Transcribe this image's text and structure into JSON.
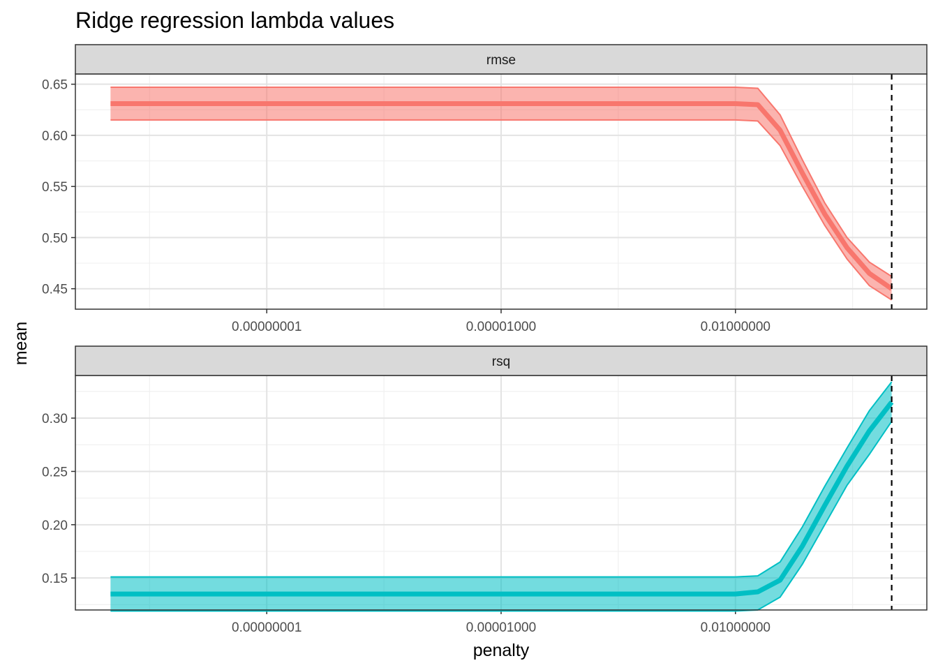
{
  "chart_data": {
    "type": "line",
    "title": "Ridge regression lambda values",
    "xlabel": "penalty",
    "ylabel": "mean",
    "x_scale": "log10",
    "x_ticks": [
      1e-08,
      1e-05,
      0.01
    ],
    "x_tick_labels": [
      "0.00000001",
      "0.00001000",
      "0.01000000"
    ],
    "selected_penalty": 1.0,
    "grid": true,
    "legend": "none",
    "penalty": [
      1e-10,
      1.931e-10,
      3.728e-10,
      7.197e-10,
      1.389e-09,
      2.683e-09,
      5.179e-09,
      1e-08,
      1.931e-08,
      3.728e-08,
      7.197e-08,
      1.389e-07,
      2.683e-07,
      5.179e-07,
      1e-06,
      1.931e-06,
      3.728e-06,
      7.197e-06,
      1.389e-05,
      2.683e-05,
      5.179e-05,
      0.0001,
      0.0001931,
      0.0003728,
      0.0007197,
      0.001389,
      0.002683,
      0.005179,
      0.01,
      0.01931,
      0.03728,
      0.07197,
      0.1389,
      0.2683,
      0.5179,
      1.0
    ],
    "panels": [
      {
        "metric": "rmse",
        "color": "#F8766D",
        "ylim": [
          0.43,
          0.66
        ],
        "y_ticks": [
          0.45,
          0.5,
          0.55,
          0.6,
          0.65
        ],
        "y_tick_labels": [
          "0.45",
          "0.50",
          "0.55",
          "0.60",
          "0.65"
        ],
        "mean": [
          0.631,
          0.631,
          0.631,
          0.631,
          0.631,
          0.631,
          0.631,
          0.631,
          0.631,
          0.631,
          0.631,
          0.631,
          0.631,
          0.631,
          0.631,
          0.631,
          0.631,
          0.631,
          0.631,
          0.631,
          0.631,
          0.631,
          0.631,
          0.631,
          0.631,
          0.631,
          0.631,
          0.631,
          0.631,
          0.63,
          0.605,
          0.563,
          0.523,
          0.49,
          0.465,
          0.45
        ],
        "lower": [
          0.615,
          0.615,
          0.615,
          0.615,
          0.615,
          0.615,
          0.615,
          0.615,
          0.615,
          0.615,
          0.615,
          0.615,
          0.615,
          0.615,
          0.615,
          0.615,
          0.615,
          0.615,
          0.615,
          0.615,
          0.615,
          0.615,
          0.615,
          0.615,
          0.615,
          0.615,
          0.615,
          0.615,
          0.615,
          0.614,
          0.59,
          0.55,
          0.512,
          0.479,
          0.453,
          0.439
        ],
        "upper": [
          0.647,
          0.647,
          0.647,
          0.647,
          0.647,
          0.647,
          0.647,
          0.647,
          0.647,
          0.647,
          0.647,
          0.647,
          0.647,
          0.647,
          0.647,
          0.647,
          0.647,
          0.647,
          0.647,
          0.647,
          0.647,
          0.647,
          0.647,
          0.647,
          0.647,
          0.647,
          0.647,
          0.647,
          0.647,
          0.646,
          0.62,
          0.576,
          0.534,
          0.5,
          0.476,
          0.462
        ]
      },
      {
        "metric": "rsq",
        "color": "#00BFC4",
        "ylim": [
          0.12,
          0.34
        ],
        "y_ticks": [
          0.15,
          0.2,
          0.25,
          0.3
        ],
        "y_tick_labels": [
          "0.15",
          "0.20",
          "0.25",
          "0.30"
        ],
        "mean": [
          0.135,
          0.135,
          0.135,
          0.135,
          0.135,
          0.135,
          0.135,
          0.135,
          0.135,
          0.135,
          0.135,
          0.135,
          0.135,
          0.135,
          0.135,
          0.135,
          0.135,
          0.135,
          0.135,
          0.135,
          0.135,
          0.135,
          0.135,
          0.135,
          0.135,
          0.135,
          0.135,
          0.135,
          0.135,
          0.137,
          0.148,
          0.18,
          0.218,
          0.255,
          0.288,
          0.315
        ],
        "lower": [
          0.119,
          0.119,
          0.119,
          0.119,
          0.119,
          0.119,
          0.119,
          0.119,
          0.119,
          0.119,
          0.119,
          0.119,
          0.119,
          0.119,
          0.119,
          0.119,
          0.119,
          0.119,
          0.119,
          0.119,
          0.119,
          0.119,
          0.119,
          0.119,
          0.119,
          0.119,
          0.119,
          0.119,
          0.119,
          0.12,
          0.132,
          0.163,
          0.2,
          0.237,
          0.266,
          0.297
        ],
        "upper": [
          0.151,
          0.151,
          0.151,
          0.151,
          0.151,
          0.151,
          0.151,
          0.151,
          0.151,
          0.151,
          0.151,
          0.151,
          0.151,
          0.151,
          0.151,
          0.151,
          0.151,
          0.151,
          0.151,
          0.151,
          0.151,
          0.151,
          0.151,
          0.151,
          0.151,
          0.151,
          0.151,
          0.151,
          0.151,
          0.152,
          0.165,
          0.198,
          0.236,
          0.272,
          0.307,
          0.334
        ]
      }
    ]
  }
}
